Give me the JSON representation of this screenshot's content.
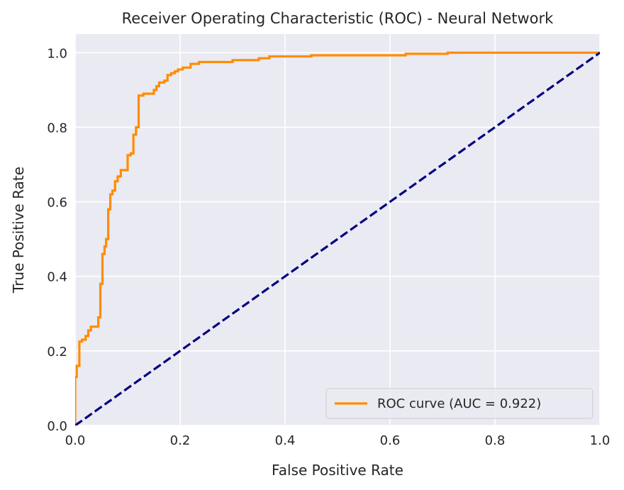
{
  "chart_data": {
    "type": "line",
    "title": "Receiver Operating Characteristic (ROC) - Neural Network",
    "xlabel": "False Positive Rate",
    "ylabel": "True Positive Rate",
    "xlim": [
      0.0,
      1.0
    ],
    "ylim": [
      0.0,
      1.05
    ],
    "xticks": [
      "0.0",
      "0.2",
      "0.4",
      "0.6",
      "0.8",
      "1.0"
    ],
    "yticks": [
      "0.0",
      "0.2",
      "0.4",
      "0.6",
      "0.8",
      "1.0"
    ],
    "grid": true,
    "background_color": "#eaeaf2",
    "legend_position": "lower-right",
    "series": [
      {
        "name": "ROC curve (AUC = 0.922)",
        "color": "#ff8c00",
        "style": "solid",
        "x": [
          0.0,
          0.0,
          0.003,
          0.003,
          0.008,
          0.008,
          0.013,
          0.013,
          0.02,
          0.02,
          0.025,
          0.025,
          0.03,
          0.03,
          0.044,
          0.044,
          0.048,
          0.048,
          0.052,
          0.052,
          0.056,
          0.056,
          0.059,
          0.059,
          0.063,
          0.063,
          0.067,
          0.067,
          0.071,
          0.071,
          0.076,
          0.076,
          0.081,
          0.081,
          0.087,
          0.087,
          0.1,
          0.1,
          0.106,
          0.106,
          0.111,
          0.111,
          0.116,
          0.116,
          0.121,
          0.121,
          0.13,
          0.13,
          0.15,
          0.15,
          0.155,
          0.155,
          0.16,
          0.16,
          0.17,
          0.17,
          0.176,
          0.176,
          0.183,
          0.183,
          0.19,
          0.19,
          0.196,
          0.196,
          0.205,
          0.205,
          0.22,
          0.22,
          0.236,
          0.236,
          0.3,
          0.3,
          0.35,
          0.35,
          0.37,
          0.37,
          0.45,
          0.45,
          0.63,
          0.63,
          0.71,
          0.71,
          1.0
        ],
        "y": [
          0.0,
          0.13,
          0.13,
          0.16,
          0.16,
          0.225,
          0.225,
          0.23,
          0.23,
          0.24,
          0.24,
          0.255,
          0.255,
          0.265,
          0.265,
          0.29,
          0.29,
          0.38,
          0.38,
          0.46,
          0.46,
          0.48,
          0.48,
          0.5,
          0.5,
          0.58,
          0.58,
          0.62,
          0.62,
          0.63,
          0.63,
          0.655,
          0.655,
          0.668,
          0.668,
          0.685,
          0.685,
          0.725,
          0.725,
          0.73,
          0.73,
          0.78,
          0.78,
          0.8,
          0.8,
          0.885,
          0.885,
          0.89,
          0.89,
          0.9,
          0.9,
          0.91,
          0.91,
          0.92,
          0.92,
          0.925,
          0.925,
          0.94,
          0.94,
          0.945,
          0.945,
          0.95,
          0.95,
          0.955,
          0.955,
          0.96,
          0.96,
          0.97,
          0.97,
          0.975,
          0.975,
          0.98,
          0.98,
          0.985,
          0.985,
          0.99,
          0.99,
          0.993,
          0.993,
          0.997,
          0.997,
          1.0,
          1.0
        ]
      },
      {
        "name": "",
        "color": "#000080",
        "style": "dashed",
        "x": [
          0.0,
          1.0
        ],
        "y": [
          0.0,
          1.0
        ]
      }
    ]
  }
}
